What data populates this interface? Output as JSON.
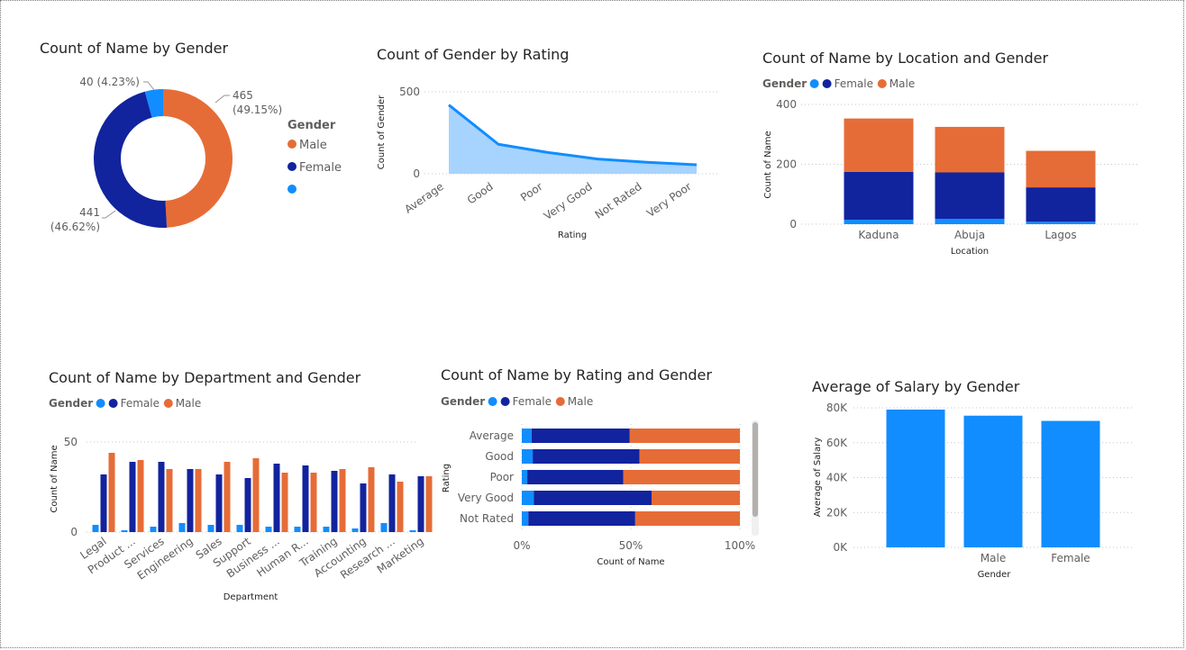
{
  "colors": {
    "blank": "#118dff",
    "female": "#12239e",
    "male": "#e66c37",
    "area_fill": "#a7d3ff"
  },
  "chart_data": [
    {
      "id": "gender_donut",
      "type": "pie",
      "title": "Count of Name by Gender",
      "legend_title": "Gender",
      "categories": [
        "Male",
        "Female",
        ""
      ],
      "values": [
        465,
        441,
        40
      ],
      "labels": [
        {
          "count": "465",
          "pct": "(49.15%)"
        },
        {
          "count": "441",
          "pct": "(46.62%)"
        },
        {
          "count": "40 (4.23%)"
        }
      ]
    },
    {
      "id": "gender_by_rating",
      "type": "area",
      "title": "Count of Gender by Rating",
      "xlabel": "Rating",
      "ylabel": "Count of Gender",
      "ylim": [
        0,
        500
      ],
      "yticks": [
        "0",
        "500"
      ],
      "categories": [
        "Average",
        "Good",
        "Poor",
        "Very Good",
        "Not Rated",
        "Very Poor"
      ],
      "values": [
        420,
        180,
        130,
        90,
        70,
        55
      ]
    },
    {
      "id": "location_gender",
      "type": "bar",
      "stacked": true,
      "title": "Count of Name by Location and Gender",
      "legend_title": "Gender",
      "xlabel": "Location",
      "ylabel": "Count of Name",
      "ylim": [
        0,
        400
      ],
      "yticks": [
        "0",
        "200",
        "400"
      ],
      "categories": [
        "Kaduna",
        "Abuja",
        "Lagos"
      ],
      "series": [
        {
          "name": "",
          "values": [
            15,
            18,
            8
          ]
        },
        {
          "name": "Female",
          "values": [
            160,
            155,
            115
          ]
        },
        {
          "name": "Male",
          "values": [
            178,
            152,
            122
          ]
        }
      ]
    },
    {
      "id": "department_gender",
      "type": "bar",
      "title": "Count of Name by Department and Gender",
      "legend_title": "Gender",
      "xlabel": "Department",
      "ylabel": "Count of Name",
      "ylim": [
        0,
        50
      ],
      "yticks": [
        "0",
        "50"
      ],
      "categories": [
        "Legal",
        "Product ...",
        "Services",
        "Engineering",
        "Sales",
        "Support",
        "Business ...",
        "Human R...",
        "Training",
        "Accounting",
        "Research ...",
        "Marketing"
      ],
      "series": [
        {
          "name": "",
          "values": [
            4,
            1,
            3,
            5,
            4,
            4,
            3,
            3,
            3,
            2,
            5,
            1
          ]
        },
        {
          "name": "Female",
          "values": [
            32,
            39,
            39,
            35,
            32,
            30,
            38,
            37,
            34,
            27,
            32,
            31
          ]
        },
        {
          "name": "Male",
          "values": [
            44,
            40,
            35,
            35,
            39,
            41,
            33,
            33,
            35,
            36,
            28,
            31
          ]
        }
      ]
    },
    {
      "id": "rating_gender",
      "type": "bar",
      "orientation": "horizontal",
      "stacked_percent": true,
      "title": "Count of Name by Rating and Gender",
      "legend_title": "Gender",
      "xlabel": "Count of Name",
      "ylabel": "Rating",
      "xticks": [
        "0%",
        "50%",
        "100%"
      ],
      "categories": [
        "Average",
        "Good",
        "Poor",
        "Very Good",
        "Not Rated"
      ],
      "series": [
        {
          "name": "",
          "values": [
            4.5,
            5,
            2.5,
            5.5,
            3
          ]
        },
        {
          "name": "Female",
          "values": [
            45,
            49,
            44,
            54,
            49
          ]
        },
        {
          "name": "Male",
          "values": [
            50.5,
            46,
            53.5,
            40.5,
            48
          ]
        }
      ]
    },
    {
      "id": "salary_gender",
      "type": "bar",
      "title": "Average of Salary by Gender",
      "xlabel": "Gender",
      "ylabel": "Average of Salary",
      "ylim": [
        0,
        80000
      ],
      "yticks": [
        "0K",
        "20K",
        "40K",
        "60K",
        "80K"
      ],
      "categories": [
        "",
        "Male",
        "Female"
      ],
      "values": [
        79000,
        75500,
        72500
      ]
    }
  ]
}
